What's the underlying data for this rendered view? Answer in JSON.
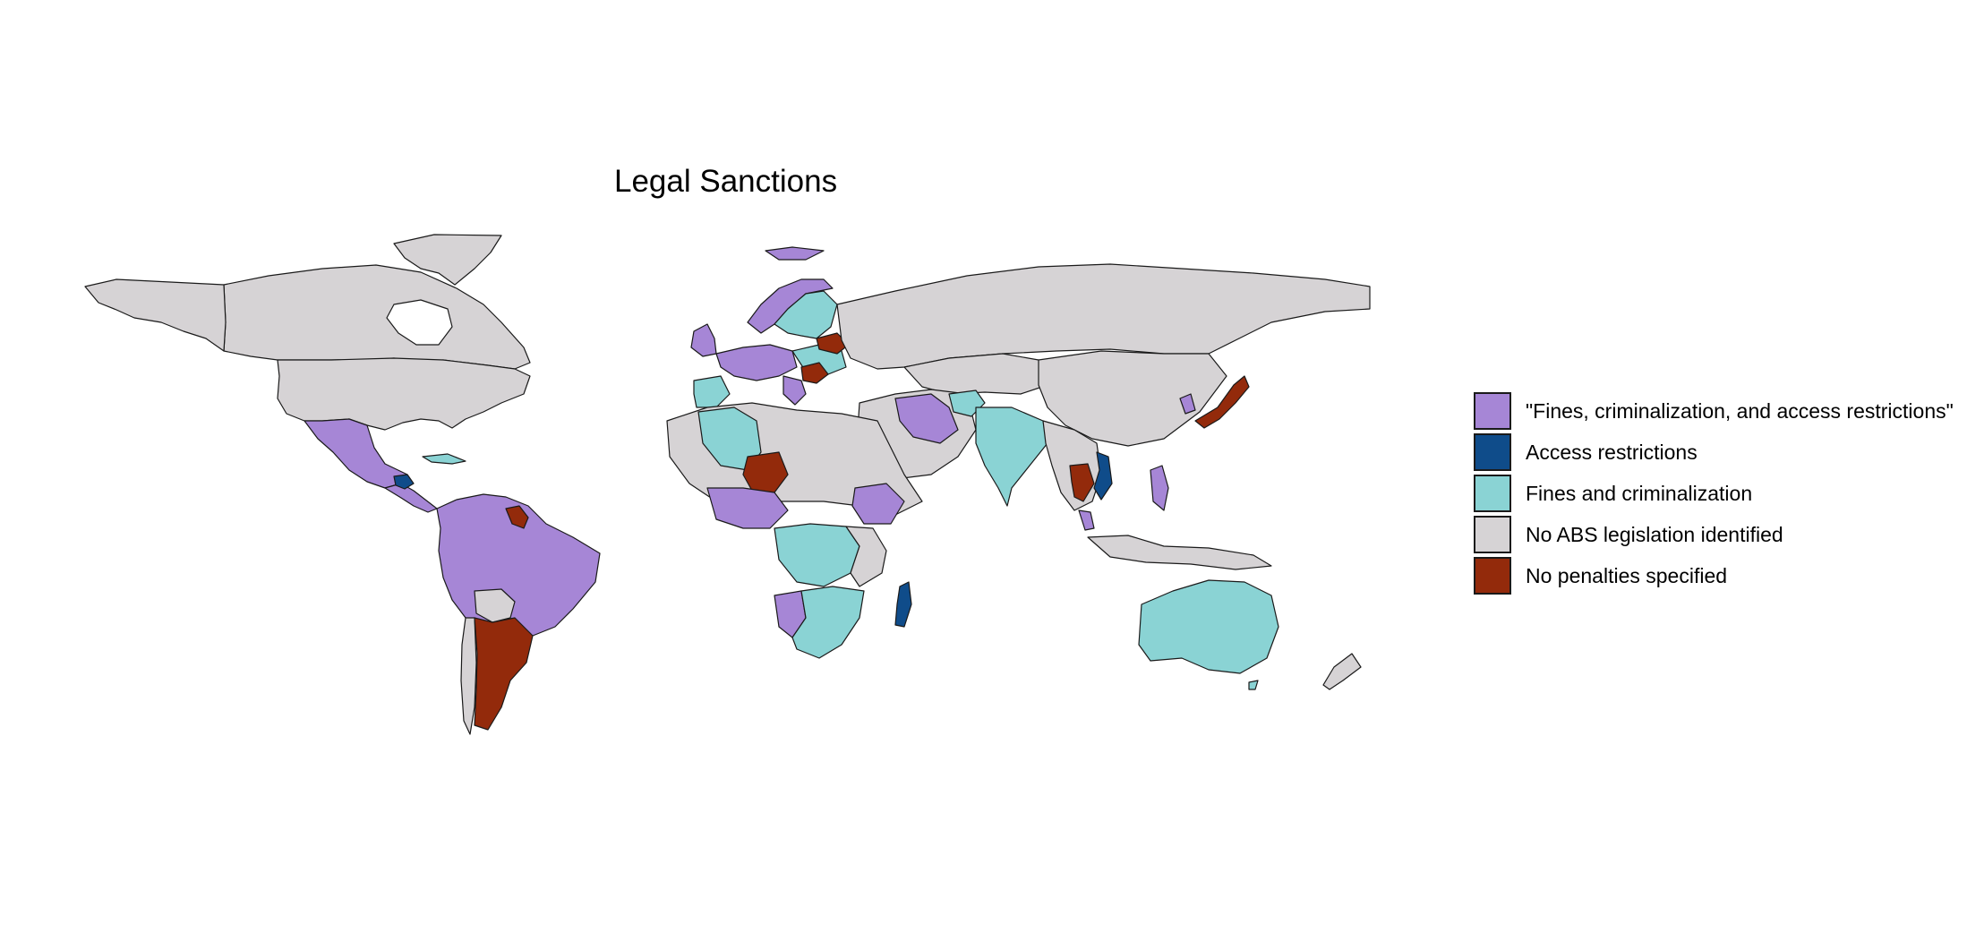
{
  "title": "Legal Sanctions",
  "colors": {
    "fines_crim_access": "#a686d6",
    "access": "#0f4c8a",
    "fines_crim": "#8ad3d4",
    "none": "#d6d3d5",
    "no_penalties": "#932a0b",
    "border": "#1a1a1a",
    "water": "#ffffff"
  },
  "legend": {
    "items": [
      {
        "label": "\"Fines, criminalization, and access restrictions\"",
        "color": "#a686d6"
      },
      {
        "label": "Access restrictions",
        "color": "#0f4c8a"
      },
      {
        "label": "Fines and criminalization",
        "color": "#8ad3d4"
      },
      {
        "label": "No ABS legislation identified",
        "color": "#d6d3d5"
      },
      {
        "label": "No penalties specified",
        "color": "#932a0b"
      }
    ]
  }
}
